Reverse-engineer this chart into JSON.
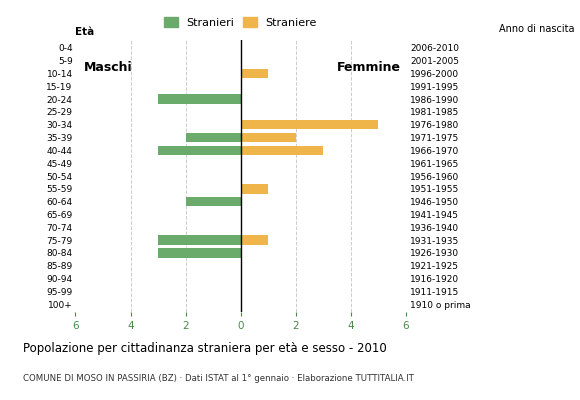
{
  "age_groups": [
    "100+",
    "95-99",
    "90-94",
    "85-89",
    "80-84",
    "75-79",
    "70-74",
    "65-69",
    "60-64",
    "55-59",
    "50-54",
    "45-49",
    "40-44",
    "35-39",
    "30-34",
    "25-29",
    "20-24",
    "15-19",
    "10-14",
    "5-9",
    "0-4"
  ],
  "birth_years": [
    "1910 o prima",
    "1911-1915",
    "1916-1920",
    "1921-1925",
    "1926-1930",
    "1931-1935",
    "1936-1940",
    "1941-1945",
    "1946-1950",
    "1951-1955",
    "1956-1960",
    "1961-1965",
    "1966-1970",
    "1971-1975",
    "1976-1980",
    "1981-1985",
    "1986-1990",
    "1991-1995",
    "1996-2000",
    "2001-2005",
    "2006-2010"
  ],
  "maschi": [
    0,
    0,
    0,
    0,
    3,
    3,
    0,
    0,
    2,
    0,
    0,
    0,
    3,
    2,
    0,
    0,
    3,
    0,
    0,
    0,
    0
  ],
  "femmine": [
    0,
    0,
    0,
    0,
    0,
    1,
    0,
    0,
    0,
    1,
    0,
    0,
    3,
    2,
    5,
    0,
    0,
    0,
    1,
    0,
    0
  ],
  "color_maschi": "#6aaa6a",
  "color_femmine": "#f0b54a",
  "title": "Popolazione per cittadinanza straniera per età e sesso - 2010",
  "subtitle": "COMUNE DI MOSO IN PASSIRIA (BZ) · Dati ISTAT al 1° gennaio · Elaborazione TUTTITALIA.IT",
  "legend_maschi": "Stranieri",
  "legend_femmine": "Straniere",
  "xlabel_eta": "Età",
  "xlabel_anno": "Anno di nascita",
  "label_maschi": "Maschi",
  "label_femmine": "Femmine",
  "xlim": 6,
  "xticks": [
    -6,
    -4,
    -2,
    0,
    2,
    4,
    6
  ],
  "xticklabels": [
    "6",
    "4",
    "2",
    "0",
    "2",
    "4",
    "6"
  ],
  "bg_color": "#ffffff",
  "grid_color": "#cccccc",
  "bar_height": 0.75,
  "xtick_color": "#4a8a4a"
}
